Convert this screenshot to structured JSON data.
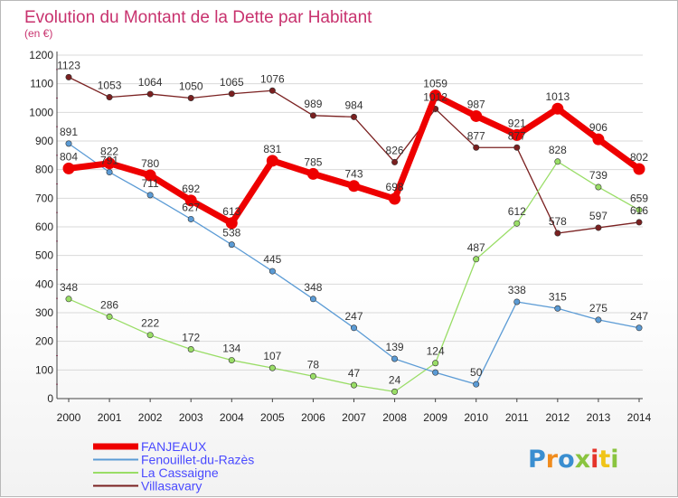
{
  "chart_data": {
    "type": "line",
    "title": "Evolution du Montant de la Dette par Habitant",
    "subtitle": "(en €)",
    "x": [
      2000,
      2001,
      2002,
      2003,
      2004,
      2005,
      2006,
      2007,
      2008,
      2009,
      2010,
      2011,
      2012,
      2013,
      2014
    ],
    "ylim": [
      0,
      1200
    ],
    "yticks": [
      0,
      100,
      200,
      300,
      400,
      500,
      600,
      700,
      800,
      900,
      1000,
      1100,
      1200
    ],
    "grid": "horizontal",
    "legend_position": "bottom-left",
    "series": [
      {
        "name": "FANJEAUX",
        "color": "#ee0000",
        "values": [
          804,
          822,
          780,
          692,
          613,
          831,
          785,
          743,
          698,
          1059,
          987,
          921,
          1013,
          906,
          802
        ],
        "labels": [
          "804",
          "822",
          "780",
          "692",
          "613",
          "831",
          "785",
          "743",
          "698",
          "1059",
          "987",
          "921",
          "1013",
          "906",
          "802"
        ]
      },
      {
        "name": "Fenouillet-du-Razès",
        "color": "#5b9bd5",
        "values": [
          891,
          791,
          711,
          627,
          538,
          445,
          348,
          247,
          139,
          91,
          50,
          338,
          315,
          275,
          247
        ],
        "labels": [
          "891",
          "791",
          "711",
          "627",
          "538",
          "445",
          "348",
          "247",
          "139",
          "",
          "50",
          "338",
          "315",
          "275",
          "247"
        ]
      },
      {
        "name": "La Cassaigne",
        "color": "#99dd66",
        "values": [
          348,
          286,
          222,
          172,
          134,
          107,
          78,
          47,
          24,
          124,
          487,
          612,
          828,
          739,
          659
        ],
        "labels": [
          "348",
          "286",
          "222",
          "172",
          "134",
          "107",
          "78",
          "47",
          "24",
          "124",
          "487",
          "612",
          "828",
          "739",
          "659"
        ]
      },
      {
        "name": "Villasavary",
        "color": "#7a2020",
        "values": [
          1123,
          1053,
          1064,
          1050,
          1065,
          1076,
          989,
          984,
          826,
          1012,
          877,
          877,
          578,
          597,
          616
        ],
        "labels": [
          "1123",
          "1053",
          "1064",
          "1050",
          "1065",
          "1076",
          "989",
          "984",
          "826",
          "1012",
          "877",
          "877",
          "578",
          "597",
          "616"
        ]
      }
    ]
  },
  "logo": {
    "text": "Proxiti",
    "colors": [
      "#3a8ed0",
      "#f08c1e",
      "#3a8ed0",
      "#8ac43f",
      "#e5332a",
      "#f0c419",
      "#8ac43f"
    ]
  }
}
